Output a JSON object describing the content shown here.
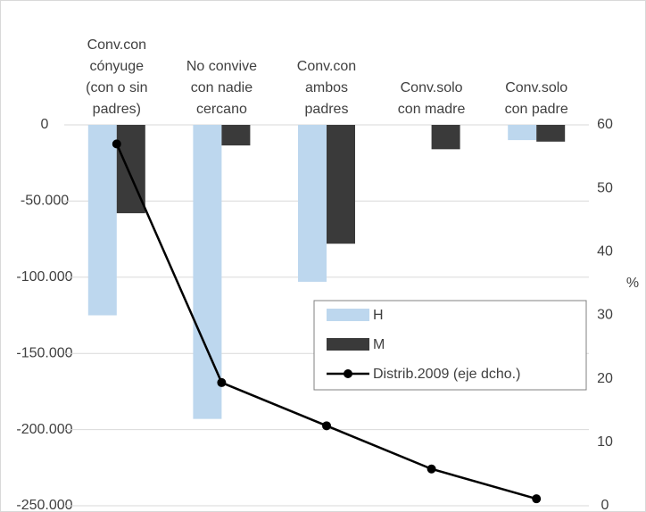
{
  "chart_data": {
    "type": "bar",
    "categories": [
      [
        "Conv.con",
        "cónyuge",
        "(con o sin",
        "padres)"
      ],
      [
        "No convive",
        "con nadie",
        "cercano"
      ],
      [
        "Conv.con",
        "ambos",
        "padres"
      ],
      [
        "Conv.solo",
        "con madre"
      ],
      [
        "Conv.solo",
        "con padre"
      ]
    ],
    "series": [
      {
        "name": "H",
        "color": "#bdd7ee",
        "values": [
          -125000,
          -193000,
          -103000,
          0,
          -10000
        ]
      },
      {
        "name": "M",
        "color": "#3a3a3a",
        "values": [
          -58000,
          -13500,
          -78000,
          -16000,
          -11000
        ]
      },
      {
        "name": "Distrib.2009 (eje dcho.)",
        "type": "line",
        "color": "#000000",
        "axis": "y2",
        "values": [
          57,
          19.4,
          12.6,
          5.8,
          1.1
        ]
      }
    ],
    "ylim": [
      -250000,
      0
    ],
    "yticks": [
      {
        "value": -250000,
        "label": "-250.000"
      },
      {
        "value": -200000,
        "label": "-200.000"
      },
      {
        "value": -150000,
        "label": "-150.000"
      },
      {
        "value": -100000,
        "label": "-100.000"
      },
      {
        "value": -50000,
        "label": "-50.000"
      },
      0
    ],
    "y2lim": [
      0,
      60
    ],
    "y2ticks": [
      0,
      10,
      20,
      30,
      40,
      50,
      60
    ],
    "y2label": "%",
    "grid": true,
    "legend": "center-right"
  }
}
